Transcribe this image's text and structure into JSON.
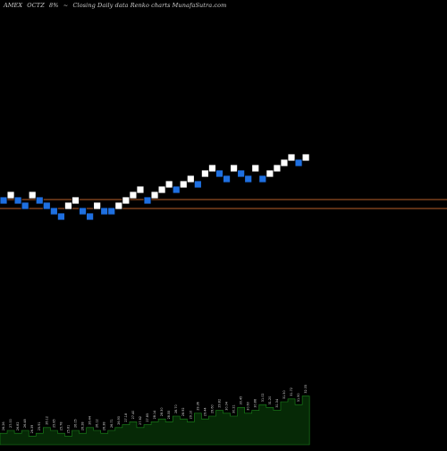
{
  "header": {
    "exchange": "AMEX",
    "symbol": "OCTZ",
    "change": "8%",
    "marker": "~",
    "description": "Closing Daily data  Renko  charts MunafaSutra.com"
  },
  "colors": {
    "background": "#000000",
    "brick_up": "#ffffff",
    "brick_down": "#1e6fe0",
    "brick_outline": "#000000",
    "reference_line": "#b8612a",
    "volume_fill": "#062906",
    "volume_stroke": "#1c8a1c",
    "label_text": "#d8d8d8"
  },
  "chart_data": {
    "type": "renko",
    "title": "",
    "xlabel": "",
    "ylabel": "",
    "grid": false,
    "ylim": [
      22.5,
      31.0
    ],
    "reference_lines": [
      27.1,
      26.1
    ],
    "bricks": [
      {
        "dir": "down",
        "value": 27.4
      },
      {
        "dir": "up",
        "value": 28.0
      },
      {
        "dir": "down",
        "value": 27.4
      },
      {
        "dir": "down",
        "value": 26.8
      },
      {
        "dir": "up",
        "value": 28.0
      },
      {
        "dir": "down",
        "value": 27.4
      },
      {
        "dir": "down",
        "value": 26.8
      },
      {
        "dir": "down",
        "value": 26.2
      },
      {
        "dir": "down",
        "value": 25.6
      },
      {
        "dir": "up",
        "value": 26.8
      },
      {
        "dir": "up",
        "value": 27.4
      },
      {
        "dir": "down",
        "value": 26.2
      },
      {
        "dir": "down",
        "value": 25.6
      },
      {
        "dir": "up",
        "value": 26.8
      },
      {
        "dir": "down",
        "value": 26.2
      },
      {
        "dir": "down",
        "value": 26.2
      },
      {
        "dir": "up",
        "value": 26.8
      },
      {
        "dir": "up",
        "value": 27.4
      },
      {
        "dir": "up",
        "value": 28.0
      },
      {
        "dir": "up",
        "value": 28.6
      },
      {
        "dir": "down",
        "value": 27.4
      },
      {
        "dir": "up",
        "value": 28.0
      },
      {
        "dir": "up",
        "value": 28.6
      },
      {
        "dir": "up",
        "value": 29.2
      },
      {
        "dir": "down",
        "value": 28.6
      },
      {
        "dir": "up",
        "value": 29.2
      },
      {
        "dir": "up",
        "value": 29.8
      },
      {
        "dir": "down",
        "value": 29.2
      },
      {
        "dir": "up",
        "value": 30.4
      },
      {
        "dir": "up",
        "value": 31.0
      },
      {
        "dir": "down",
        "value": 30.4
      },
      {
        "dir": "down",
        "value": 29.8
      },
      {
        "dir": "up",
        "value": 31.0
      },
      {
        "dir": "down",
        "value": 30.4
      },
      {
        "dir": "down",
        "value": 29.8
      },
      {
        "dir": "up",
        "value": 31.0
      },
      {
        "dir": "down",
        "value": 29.8
      },
      {
        "dir": "up",
        "value": 30.4
      },
      {
        "dir": "up",
        "value": 31.0
      },
      {
        "dir": "up",
        "value": 31.6
      },
      {
        "dir": "up",
        "value": 32.2
      },
      {
        "dir": "down",
        "value": 31.6
      },
      {
        "dir": "up",
        "value": 32.2
      }
    ],
    "volume": [
      4,
      5,
      4,
      5,
      3,
      4,
      6,
      5,
      4,
      3,
      5,
      4,
      6,
      5,
      4,
      5,
      6,
      7,
      8,
      6,
      7,
      8,
      9,
      8,
      10,
      9,
      8,
      11,
      9,
      10,
      12,
      11,
      10,
      13,
      11,
      12,
      14,
      13,
      12,
      15,
      16,
      14,
      17
    ],
    "volume_labels": [
      "26.26",
      "27.00",
      "26.82",
      "26.48",
      "26.39",
      "25.91",
      "26.12",
      "25.85",
      "25.78",
      "25.81",
      "26.05",
      "26.28",
      "26.44",
      "26.12",
      "26.38",
      "26.71",
      "26.90",
      "27.18",
      "27.40",
      "27.62",
      "27.85",
      "28.14",
      "28.30",
      "28.55",
      "28.70",
      "28.92",
      "29.10",
      "29.36",
      "29.44",
      "29.60",
      "29.82",
      "30.04",
      "30.21",
      "30.45",
      "30.60",
      "30.88",
      "31.02",
      "31.20",
      "31.34",
      "31.50",
      "31.72",
      "31.90",
      "32.05"
    ]
  }
}
